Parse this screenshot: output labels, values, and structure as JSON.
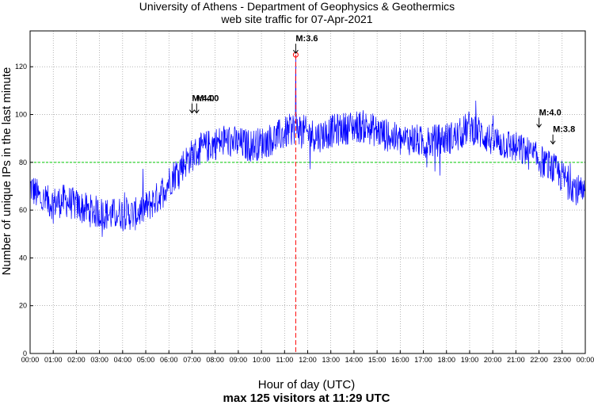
{
  "chart_data": {
    "type": "line",
    "title": "University of Athens - Department of Geophysics & Geothermics",
    "subtitle": "web site traffic for 07-Apr-2021",
    "xlabel": "Hour of day (UTC)",
    "footer": "max 125 visitors at 11:29 UTC",
    "ylabel": "Number of unique IPs in the last minute",
    "xlim": [
      0,
      24
    ],
    "ylim": [
      0,
      135
    ],
    "x_ticks": [
      "00:00",
      "01:00",
      "02:00",
      "03:00",
      "04:00",
      "05:00",
      "06:00",
      "07:00",
      "08:00",
      "09:00",
      "10:00",
      "11:00",
      "12:00",
      "13:00",
      "14:00",
      "15:00",
      "16:00",
      "17:00",
      "18:00",
      "19:00",
      "20:00",
      "21:00",
      "22:00",
      "23:00",
      "00:00"
    ],
    "y_ticks": [
      0,
      20,
      40,
      60,
      80,
      100,
      120
    ],
    "grid": true,
    "threshold": 80,
    "series": [
      {
        "name": "visitors",
        "color": "#0000ff",
        "x": [
          0,
          0.5,
          1,
          1.5,
          2,
          2.5,
          3,
          3.5,
          4,
          4.5,
          5,
          5.5,
          6,
          6.5,
          7,
          7.5,
          8,
          8.5,
          9,
          9.5,
          10,
          10.5,
          11,
          11.5,
          12,
          12.5,
          13,
          13.5,
          14,
          14.5,
          15,
          15.5,
          16,
          16.5,
          17,
          17.5,
          18,
          18.5,
          19,
          19.5,
          20,
          20.5,
          21,
          21.5,
          22,
          22.5,
          23,
          23.5,
          24
        ],
        "y": [
          70,
          64,
          63,
          64,
          62,
          60,
          59,
          58,
          59,
          58,
          61,
          65,
          72,
          78,
          83,
          86,
          88,
          89,
          88,
          87,
          88,
          90,
          92,
          95,
          92,
          91,
          93,
          94,
          95,
          95,
          93,
          91,
          89,
          90,
          88,
          89,
          90,
          91,
          95,
          92,
          89,
          88,
          86,
          84,
          81,
          78,
          74,
          70,
          65
        ]
      }
    ],
    "max_marker": {
      "hour": 11.483,
      "value": 125
    },
    "quakes": [
      {
        "label": "M:4.0",
        "hour": 7.0,
        "arrow_value": 100
      },
      {
        "label": "M:4.0",
        "hour": 7.2,
        "arrow_value": 100
      },
      {
        "label": "M:3.6",
        "hour": 11.483,
        "arrow_value": 125
      },
      {
        "label": "M:4.0",
        "hour": 22.0,
        "arrow_value": 94
      },
      {
        "label": "M:3.8",
        "hour": 22.6,
        "arrow_value": 87
      }
    ],
    "colors": {
      "line": "#0000ff",
      "threshold": "#00cc00",
      "max": "#ff0000",
      "grid": "#888888"
    }
  }
}
